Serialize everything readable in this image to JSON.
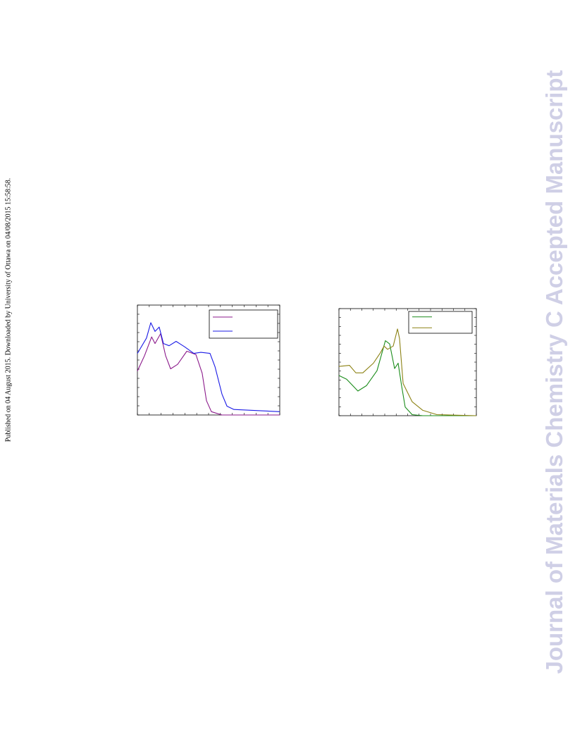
{
  "stamp": "Published on 04 August 2015. Downloaded by University of Ottawa on 04/08/2015 15:58:58.",
  "watermark": "Journal of Materials Chemistry C Accepted Manuscript",
  "chart_data": [
    {
      "type": "line",
      "xlim": [
        0,
        100
      ],
      "ylim": [
        0,
        100
      ],
      "series": [
        {
          "color": "#8b1a8b",
          "x": [
            0,
            5,
            10,
            12.4,
            16.3,
            19.8,
            23.3,
            28.2,
            34.7,
            41.1,
            45.5,
            48.5,
            52,
            59.4,
            100
          ],
          "values": [
            40,
            54,
            71,
            65,
            74,
            54,
            42,
            46,
            58,
            55,
            38,
            13,
            3,
            0,
            0
          ]
        },
        {
          "color": "#1a1ae6",
          "x": [
            0,
            6.4,
            9.4,
            12.4,
            15.3,
            18.3,
            22.3,
            27.2,
            33.2,
            39.6,
            44.6,
            51,
            54.5,
            59.4,
            62.9,
            67.8,
            100
          ],
          "values": [
            56,
            70,
            84,
            76,
            80,
            65,
            63,
            67,
            62,
            56,
            57,
            56,
            44,
            19,
            8,
            5,
            3
          ]
        }
      ]
    },
    {
      "type": "line",
      "xlim": [
        0,
        100
      ],
      "ylim": [
        0,
        100
      ],
      "series": [
        {
          "color": "#1a8c1a",
          "x": [
            0,
            5.6,
            13.8,
            20,
            27.7,
            33.8,
            36.9,
            40.5,
            43.1,
            45.6,
            48.2,
            53.3,
            61,
            100
          ],
          "values": [
            37.5,
            34,
            23,
            28,
            42,
            70,
            67,
            44,
            49,
            28,
            8,
            1,
            0,
            0
          ]
        },
        {
          "color": "#8c8214",
          "x": [
            0,
            7.7,
            12.3,
            17.4,
            25.1,
            30.3,
            32.8,
            35.4,
            39.5,
            42.6,
            44.1,
            46.7,
            53.3,
            61,
            71.3,
            100
          ],
          "values": [
            46,
            47,
            40,
            40,
            49,
            59,
            65,
            62,
            65,
            81,
            72,
            30,
            13,
            5,
            1,
            0
          ]
        }
      ]
    }
  ]
}
